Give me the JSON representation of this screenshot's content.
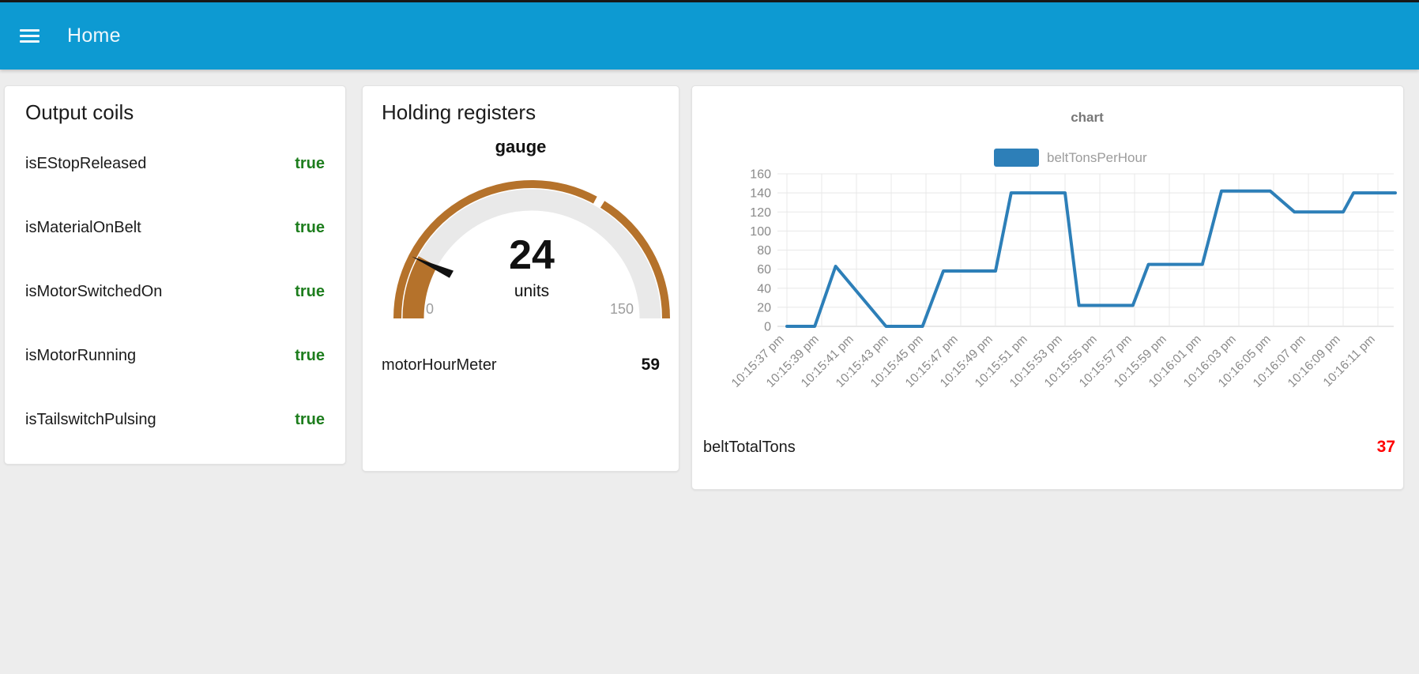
{
  "colors": {
    "navbar": "#0d9ad2",
    "true_green": "#1d7d1d",
    "gauge": "#b5722b",
    "gauge_track": "#e9e9e9",
    "needle": "#111111",
    "chart_line": "#2d7fb8",
    "total_red": "#ff0000",
    "axis_text": "#8a8a8a",
    "grid": "#e8e8e8"
  },
  "navbar": {
    "title": "Home",
    "menu_icon": "hamburger-icon"
  },
  "cards": {
    "output_coils": {
      "title": "Output coils",
      "rows": [
        {
          "label": "isEStopReleased",
          "value": "true"
        },
        {
          "label": "isMaterialOnBelt",
          "value": "true"
        },
        {
          "label": "isMotorSwitchedOn",
          "value": "true"
        },
        {
          "label": "isMotorRunning",
          "value": "true"
        },
        {
          "label": "isTailswitchPulsing",
          "value": "true"
        }
      ]
    },
    "holding_registers": {
      "title": "Holding registers",
      "gauge": {
        "title": "gauge",
        "value": "24",
        "units": "units",
        "min": "0",
        "max": "150",
        "value_num": 24,
        "min_num": 0,
        "max_num": 150,
        "sector_break_num": 100
      },
      "meter": {
        "label": "motorHourMeter",
        "value": "59"
      }
    },
    "chart": {
      "total": {
        "label": "beltTotalTons",
        "value": "37"
      }
    }
  },
  "chart_data": {
    "type": "line",
    "title": "chart",
    "legend_position": "top",
    "grid": true,
    "ylim": [
      0,
      160
    ],
    "y_ticks": [
      0,
      20,
      40,
      60,
      80,
      100,
      120,
      140,
      160
    ],
    "x_tick_interval_seconds": 2,
    "x_tick_labels": [
      "10:15:37 pm",
      "10:15:39 pm",
      "10:15:41 pm",
      "10:15:43 pm",
      "10:15:45 pm",
      "10:15:47 pm",
      "10:15:49 pm",
      "10:15:51 pm",
      "10:15:53 pm",
      "10:15:55 pm",
      "10:15:57 pm",
      "10:15:59 pm",
      "10:16:01 pm",
      "10:16:03 pm",
      "10:16:05 pm",
      "10:16:07 pm",
      "10:16:09 pm",
      "10:16:11 pm"
    ],
    "series": [
      {
        "name": "beltTonsPerHour",
        "color": "#2d7fb8",
        "points_seconds_value": [
          [
            0,
            0
          ],
          [
            1.6,
            0
          ],
          [
            2.8,
            63
          ],
          [
            5.7,
            0
          ],
          [
            7.8,
            0
          ],
          [
            9.0,
            58
          ],
          [
            12.0,
            58
          ],
          [
            12.9,
            140
          ],
          [
            16.0,
            140
          ],
          [
            16.8,
            22
          ],
          [
            19.9,
            22
          ],
          [
            20.8,
            65
          ],
          [
            23.9,
            65
          ],
          [
            25.0,
            142
          ],
          [
            27.8,
            142
          ],
          [
            29.2,
            120
          ],
          [
            32.0,
            120
          ],
          [
            32.6,
            140
          ],
          [
            35.0,
            140
          ]
        ]
      }
    ]
  }
}
